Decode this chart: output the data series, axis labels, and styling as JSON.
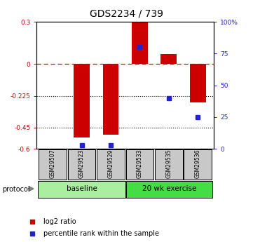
{
  "title": "GDS2234 / 739",
  "samples": [
    "GSM29507",
    "GSM29523",
    "GSM29529",
    "GSM29533",
    "GSM29535",
    "GSM29536"
  ],
  "log2_ratio": [
    0.0,
    -0.52,
    -0.5,
    0.3,
    0.07,
    -0.27
  ],
  "percentile_rank": [
    null,
    3,
    3,
    80,
    40,
    25
  ],
  "ylim_left": [
    -0.6,
    0.3
  ],
  "yticks_left": [
    0.3,
    0.0,
    -0.225,
    -0.45,
    -0.6
  ],
  "ytick_labels_left": [
    "0.3",
    "0",
    "-0.225",
    "-0.45",
    "-0.6"
  ],
  "ylim_right": [
    0,
    100
  ],
  "yticks_right": [
    100,
    75,
    50,
    25,
    0
  ],
  "ytick_labels_right": [
    "100%",
    "75",
    "50",
    "25",
    "0"
  ],
  "group_baseline_color": "#AAEEA0",
  "group_exercise_color": "#44DD44",
  "group_baseline_label": "baseline",
  "group_exercise_label": "20 wk exercise",
  "group_baseline_samples": [
    0,
    1,
    2
  ],
  "group_exercise_samples": [
    3,
    4,
    5
  ],
  "bar_color": "#CC0000",
  "point_color": "#2222CC",
  "dashed_line_color": "#CC0000",
  "bar_width": 0.55,
  "legend_label_red": "log2 ratio",
  "legend_label_blue": "percentile rank within the sample",
  "protocol_label": "protocol"
}
